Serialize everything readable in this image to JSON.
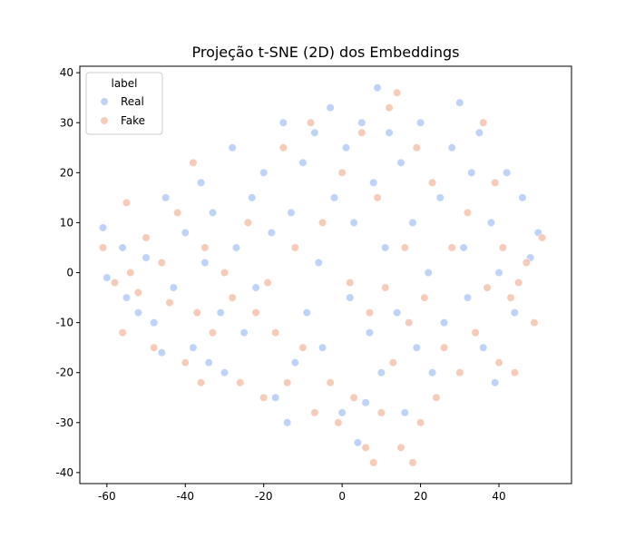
{
  "chart_data": {
    "type": "scatter",
    "title": "Projeção t-SNE (2D) dos Embeddings",
    "legend_title": "label",
    "legend": "upper left",
    "xlim": [
      -66.9,
      58.5
    ],
    "ylim": [
      -42.2,
      41.3
    ],
    "xticks": [
      -60,
      -40,
      -20,
      0,
      20,
      40
    ],
    "yticks": [
      -40,
      -30,
      -20,
      -10,
      0,
      10,
      20,
      30,
      40
    ],
    "series": [
      {
        "name": "Real",
        "color": "#a9c4f5",
        "x": [
          -60,
          -61,
          -56,
          -55,
          -52,
          -50,
          -48,
          -45,
          -43,
          -40,
          -38,
          -36,
          -35,
          -33,
          -31,
          -30,
          -28,
          -27,
          -25,
          -23,
          -22,
          -20,
          -18,
          -17,
          -15,
          -13,
          -12,
          -10,
          -9,
          -7,
          -6,
          -5,
          -3,
          -2,
          0,
          1,
          2,
          3,
          4,
          5,
          7,
          8,
          9,
          10,
          11,
          12,
          14,
          15,
          16,
          18,
          19,
          20,
          22,
          23,
          25,
          26,
          28,
          30,
          31,
          32,
          33,
          35,
          36,
          38,
          39,
          40,
          42,
          44,
          46,
          48,
          50,
          -46,
          -34,
          -14,
          6
        ],
        "y": [
          -1,
          9,
          5,
          -5,
          -8,
          3,
          -10,
          15,
          -3,
          8,
          -15,
          18,
          2,
          12,
          -8,
          -20,
          25,
          5,
          -12,
          15,
          -3,
          20,
          8,
          -25,
          30,
          12,
          -18,
          22,
          -8,
          28,
          2,
          -15,
          33,
          15,
          -28,
          25,
          -5,
          10,
          -34,
          30,
          -12,
          18,
          37,
          -20,
          5,
          28,
          -8,
          22,
          -28,
          10,
          -15,
          30,
          0,
          -20,
          15,
          -10,
          25,
          34,
          5,
          -5,
          20,
          28,
          -15,
          10,
          -22,
          0,
          20,
          -8,
          15,
          3,
          8,
          -16,
          -18,
          -30,
          -26
        ]
      },
      {
        "name": "Fake",
        "color": "#f4b9a1",
        "x": [
          -61,
          -58,
          -55,
          -54,
          -52,
          -50,
          -48,
          -46,
          -44,
          -42,
          -40,
          -38,
          -37,
          -35,
          -33,
          -30,
          -28,
          -26,
          -24,
          -22,
          -20,
          -19,
          -17,
          -15,
          -14,
          -12,
          -10,
          -8,
          -7,
          -5,
          -3,
          -1,
          0,
          2,
          3,
          5,
          6,
          7,
          8,
          9,
          10,
          11,
          12,
          13,
          15,
          16,
          17,
          18,
          19,
          21,
          23,
          24,
          26,
          28,
          30,
          32,
          34,
          36,
          37,
          39,
          40,
          41,
          43,
          44,
          45,
          47,
          49,
          51,
          -36,
          14,
          20,
          -56
        ],
        "y": [
          5,
          -2,
          14,
          0,
          -4,
          7,
          -15,
          2,
          -6,
          12,
          -18,
          22,
          -8,
          5,
          -12,
          0,
          -5,
          -22,
          10,
          -8,
          -25,
          -2,
          -12,
          25,
          -22,
          5,
          -15,
          30,
          -28,
          10,
          -22,
          -30,
          20,
          -2,
          -25,
          28,
          -35,
          -8,
          -38,
          15,
          -28,
          -3,
          33,
          -18,
          -35,
          5,
          -10,
          -38,
          25,
          -5,
          18,
          -25,
          -15,
          5,
          -20,
          12,
          -12,
          30,
          -3,
          18,
          -18,
          5,
          -5,
          -20,
          -2,
          2,
          -10,
          7,
          -22,
          36,
          -30,
          -12
        ]
      }
    ]
  }
}
